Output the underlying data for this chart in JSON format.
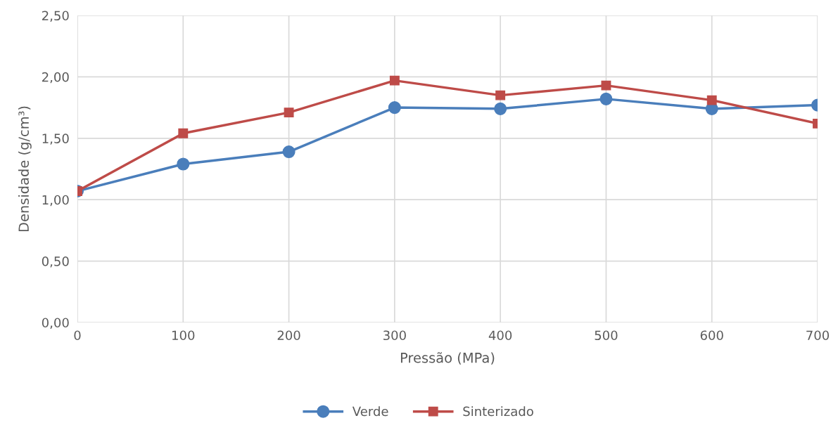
{
  "chart_data": {
    "type": "line",
    "xlabel": "Pressão (MPa)",
    "ylabel": "Densidade (g/cm³)",
    "x": [
      0,
      100,
      200,
      300,
      400,
      500,
      600,
      700
    ],
    "series": [
      {
        "name": "Verde",
        "color": "#4a7ebb",
        "marker": "circle",
        "values": [
          1.07,
          1.29,
          1.39,
          1.75,
          1.74,
          1.82,
          1.74,
          1.77
        ]
      },
      {
        "name": "Sinterizado",
        "color": "#be4b48",
        "marker": "square",
        "values": [
          1.07,
          1.54,
          1.71,
          1.97,
          1.85,
          1.93,
          1.81,
          1.62
        ]
      }
    ],
    "xlim": [
      0,
      700
    ],
    "xticks": [
      0,
      100,
      200,
      300,
      400,
      500,
      600,
      700
    ],
    "ylim": [
      0,
      2.5
    ],
    "yticks": [
      {
        "value": 0,
        "label": "0,00"
      },
      {
        "value": 0.5,
        "label": "0,50"
      },
      {
        "value": 1,
        "label": "1,00"
      },
      {
        "value": 1.5,
        "label": "1,50"
      },
      {
        "value": 2,
        "label": "2,00"
      },
      {
        "value": 2.5,
        "label": "2,50"
      }
    ],
    "grid": true,
    "legend": "bottom",
    "line_style": "solid"
  }
}
